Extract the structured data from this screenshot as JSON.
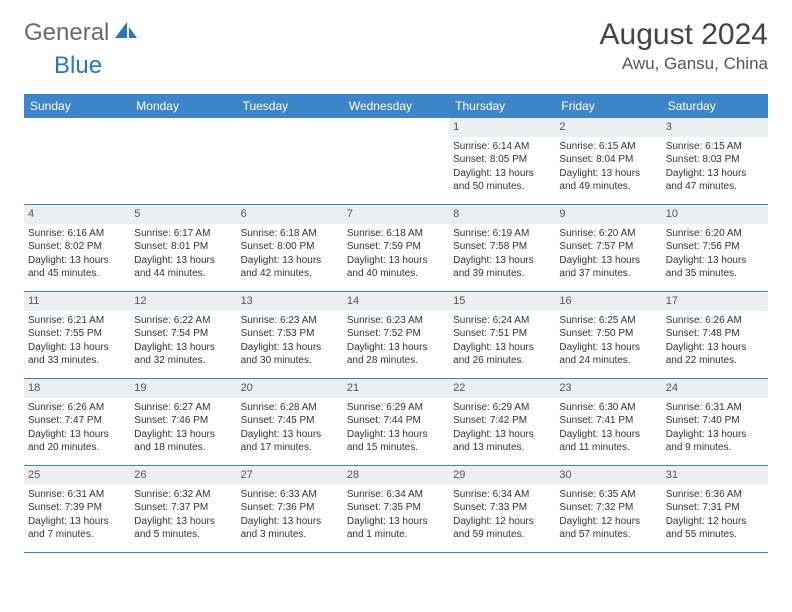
{
  "logo": {
    "text1": "General",
    "text2": "Blue"
  },
  "title": "August 2024",
  "location": "Awu, Gansu, China",
  "colors": {
    "header_bg": "#3d85c6",
    "header_text": "#ffffff",
    "daynum_bg": "#eceef0",
    "border": "#3d85c6",
    "logo_gray": "#6a6a6a",
    "logo_blue": "#2d76ba"
  },
  "day_headers": [
    "Sunday",
    "Monday",
    "Tuesday",
    "Wednesday",
    "Thursday",
    "Friday",
    "Saturday"
  ],
  "weeks": [
    [
      {
        "day": "",
        "sunrise": "",
        "sunset": "",
        "daylight": ""
      },
      {
        "day": "",
        "sunrise": "",
        "sunset": "",
        "daylight": ""
      },
      {
        "day": "",
        "sunrise": "",
        "sunset": "",
        "daylight": ""
      },
      {
        "day": "",
        "sunrise": "",
        "sunset": "",
        "daylight": ""
      },
      {
        "day": "1",
        "sunrise": "Sunrise: 6:14 AM",
        "sunset": "Sunset: 8:05 PM",
        "daylight": "Daylight: 13 hours and 50 minutes."
      },
      {
        "day": "2",
        "sunrise": "Sunrise: 6:15 AM",
        "sunset": "Sunset: 8:04 PM",
        "daylight": "Daylight: 13 hours and 49 minutes."
      },
      {
        "day": "3",
        "sunrise": "Sunrise: 6:15 AM",
        "sunset": "Sunset: 8:03 PM",
        "daylight": "Daylight: 13 hours and 47 minutes."
      }
    ],
    [
      {
        "day": "4",
        "sunrise": "Sunrise: 6:16 AM",
        "sunset": "Sunset: 8:02 PM",
        "daylight": "Daylight: 13 hours and 45 minutes."
      },
      {
        "day": "5",
        "sunrise": "Sunrise: 6:17 AM",
        "sunset": "Sunset: 8:01 PM",
        "daylight": "Daylight: 13 hours and 44 minutes."
      },
      {
        "day": "6",
        "sunrise": "Sunrise: 6:18 AM",
        "sunset": "Sunset: 8:00 PM",
        "daylight": "Daylight: 13 hours and 42 minutes."
      },
      {
        "day": "7",
        "sunrise": "Sunrise: 6:18 AM",
        "sunset": "Sunset: 7:59 PM",
        "daylight": "Daylight: 13 hours and 40 minutes."
      },
      {
        "day": "8",
        "sunrise": "Sunrise: 6:19 AM",
        "sunset": "Sunset: 7:58 PM",
        "daylight": "Daylight: 13 hours and 39 minutes."
      },
      {
        "day": "9",
        "sunrise": "Sunrise: 6:20 AM",
        "sunset": "Sunset: 7:57 PM",
        "daylight": "Daylight: 13 hours and 37 minutes."
      },
      {
        "day": "10",
        "sunrise": "Sunrise: 6:20 AM",
        "sunset": "Sunset: 7:56 PM",
        "daylight": "Daylight: 13 hours and 35 minutes."
      }
    ],
    [
      {
        "day": "11",
        "sunrise": "Sunrise: 6:21 AM",
        "sunset": "Sunset: 7:55 PM",
        "daylight": "Daylight: 13 hours and 33 minutes."
      },
      {
        "day": "12",
        "sunrise": "Sunrise: 6:22 AM",
        "sunset": "Sunset: 7:54 PM",
        "daylight": "Daylight: 13 hours and 32 minutes."
      },
      {
        "day": "13",
        "sunrise": "Sunrise: 6:23 AM",
        "sunset": "Sunset: 7:53 PM",
        "daylight": "Daylight: 13 hours and 30 minutes."
      },
      {
        "day": "14",
        "sunrise": "Sunrise: 6:23 AM",
        "sunset": "Sunset: 7:52 PM",
        "daylight": "Daylight: 13 hours and 28 minutes."
      },
      {
        "day": "15",
        "sunrise": "Sunrise: 6:24 AM",
        "sunset": "Sunset: 7:51 PM",
        "daylight": "Daylight: 13 hours and 26 minutes."
      },
      {
        "day": "16",
        "sunrise": "Sunrise: 6:25 AM",
        "sunset": "Sunset: 7:50 PM",
        "daylight": "Daylight: 13 hours and 24 minutes."
      },
      {
        "day": "17",
        "sunrise": "Sunrise: 6:26 AM",
        "sunset": "Sunset: 7:48 PM",
        "daylight": "Daylight: 13 hours and 22 minutes."
      }
    ],
    [
      {
        "day": "18",
        "sunrise": "Sunrise: 6:26 AM",
        "sunset": "Sunset: 7:47 PM",
        "daylight": "Daylight: 13 hours and 20 minutes."
      },
      {
        "day": "19",
        "sunrise": "Sunrise: 6:27 AM",
        "sunset": "Sunset: 7:46 PM",
        "daylight": "Daylight: 13 hours and 18 minutes."
      },
      {
        "day": "20",
        "sunrise": "Sunrise: 6:28 AM",
        "sunset": "Sunset: 7:45 PM",
        "daylight": "Daylight: 13 hours and 17 minutes."
      },
      {
        "day": "21",
        "sunrise": "Sunrise: 6:29 AM",
        "sunset": "Sunset: 7:44 PM",
        "daylight": "Daylight: 13 hours and 15 minutes."
      },
      {
        "day": "22",
        "sunrise": "Sunrise: 6:29 AM",
        "sunset": "Sunset: 7:42 PM",
        "daylight": "Daylight: 13 hours and 13 minutes."
      },
      {
        "day": "23",
        "sunrise": "Sunrise: 6:30 AM",
        "sunset": "Sunset: 7:41 PM",
        "daylight": "Daylight: 13 hours and 11 minutes."
      },
      {
        "day": "24",
        "sunrise": "Sunrise: 6:31 AM",
        "sunset": "Sunset: 7:40 PM",
        "daylight": "Daylight: 13 hours and 9 minutes."
      }
    ],
    [
      {
        "day": "25",
        "sunrise": "Sunrise: 6:31 AM",
        "sunset": "Sunset: 7:39 PM",
        "daylight": "Daylight: 13 hours and 7 minutes."
      },
      {
        "day": "26",
        "sunrise": "Sunrise: 6:32 AM",
        "sunset": "Sunset: 7:37 PM",
        "daylight": "Daylight: 13 hours and 5 minutes."
      },
      {
        "day": "27",
        "sunrise": "Sunrise: 6:33 AM",
        "sunset": "Sunset: 7:36 PM",
        "daylight": "Daylight: 13 hours and 3 minutes."
      },
      {
        "day": "28",
        "sunrise": "Sunrise: 6:34 AM",
        "sunset": "Sunset: 7:35 PM",
        "daylight": "Daylight: 13 hours and 1 minute."
      },
      {
        "day": "29",
        "sunrise": "Sunrise: 6:34 AM",
        "sunset": "Sunset: 7:33 PM",
        "daylight": "Daylight: 12 hours and 59 minutes."
      },
      {
        "day": "30",
        "sunrise": "Sunrise: 6:35 AM",
        "sunset": "Sunset: 7:32 PM",
        "daylight": "Daylight: 12 hours and 57 minutes."
      },
      {
        "day": "31",
        "sunrise": "Sunrise: 6:36 AM",
        "sunset": "Sunset: 7:31 PM",
        "daylight": "Daylight: 12 hours and 55 minutes."
      }
    ]
  ]
}
